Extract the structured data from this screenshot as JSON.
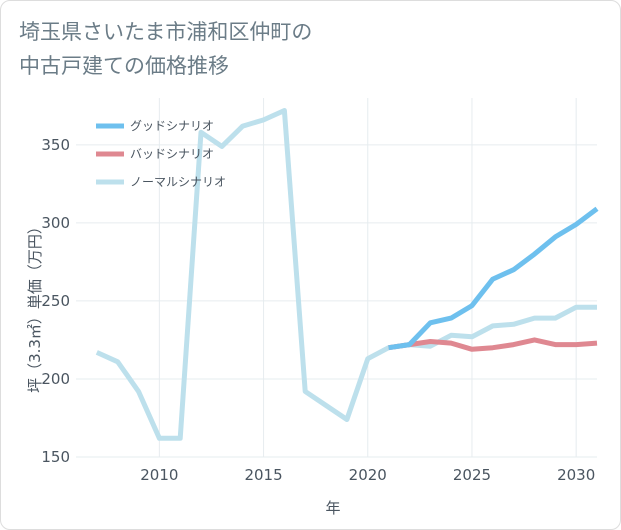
{
  "title_line1": "埼玉県さいたま市浦和区仲町の",
  "title_line2": "中古戸建ての価格推移",
  "chart_data": {
    "type": "line",
    "title": "埼玉県さいたま市浦和区仲町の中古戸建ての価格推移",
    "xlabel": "年",
    "ylabel": "坪（3.3㎡）単価（万円）",
    "xlim": [
      2006,
      2031
    ],
    "ylim": [
      150,
      380
    ],
    "xticks": [
      2010,
      2015,
      2020,
      2025,
      2030
    ],
    "yticks": [
      150,
      200,
      250,
      300,
      350
    ],
    "legend_position": "top-left",
    "series": [
      {
        "name": "ノーマルシナリオ",
        "color": "#bde0ec",
        "x": [
          2007,
          2008,
          2009,
          2010,
          2011,
          2012,
          2013,
          2014,
          2015,
          2016,
          2017,
          2018,
          2019,
          2020,
          2021,
          2022,
          2023,
          2024,
          2025,
          2026,
          2027,
          2028,
          2029,
          2030,
          2031
        ],
        "y": [
          217,
          211,
          192,
          162,
          162,
          358,
          349,
          362,
          366,
          372,
          192,
          183,
          174,
          213,
          220,
          222,
          221,
          228,
          227,
          234,
          235,
          239,
          239,
          246,
          246
        ]
      },
      {
        "name": "バッドシナリオ",
        "color": "#df8891",
        "x": [
          2021,
          2022,
          2023,
          2024,
          2025,
          2026,
          2027,
          2028,
          2029,
          2030,
          2031
        ],
        "y": [
          220,
          222,
          224,
          223,
          219,
          220,
          222,
          225,
          222,
          222,
          223
        ]
      },
      {
        "name": "グッドシナリオ",
        "color": "#6ec0ee",
        "x": [
          2021,
          2022,
          2023,
          2024,
          2025,
          2026,
          2027,
          2028,
          2029,
          2030,
          2031
        ],
        "y": [
          220,
          222,
          236,
          239,
          247,
          264,
          270,
          280,
          291,
          299,
          309
        ]
      }
    ],
    "legend_order": [
      "グッドシナリオ",
      "バッドシナリオ",
      "ノーマルシナリオ"
    ]
  }
}
